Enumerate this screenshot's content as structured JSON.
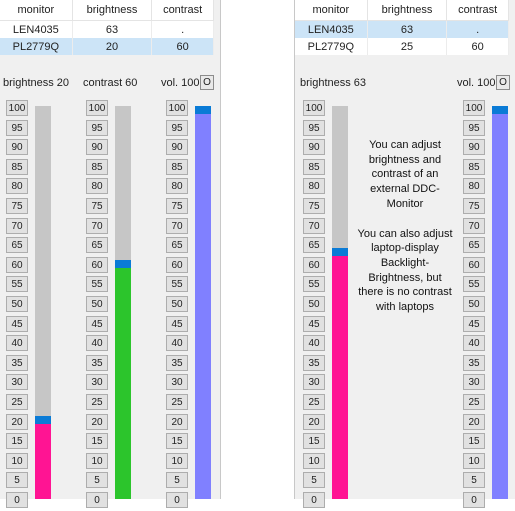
{
  "left": {
    "table": {
      "headers": [
        "monitor",
        "brightness",
        "contrast"
      ],
      "rows": [
        {
          "monitor": "LEN4035",
          "brightness": "63",
          "contrast": ".",
          "selected": false
        },
        {
          "monitor": "PL2779Q",
          "brightness": "20",
          "contrast": "60",
          "selected": true
        }
      ]
    },
    "brightness_label": "brightness 20",
    "contrast_label": "contrast 60",
    "volume_label": "vol. 100",
    "o_button": "O",
    "brightness_level": 20,
    "contrast_level": 60,
    "volume_level": 100
  },
  "right": {
    "table": {
      "headers": [
        "monitor",
        "brightness",
        "contrast"
      ],
      "rows": [
        {
          "monitor": "LEN4035",
          "brightness": "63",
          "contrast": ".",
          "selected": true
        },
        {
          "monitor": "PL2779Q",
          "brightness": "25",
          "contrast": "60",
          "selected": false
        }
      ]
    },
    "brightness_label": "brightness 63",
    "volume_label": "vol. 100",
    "o_button": "O",
    "brightness_level": 63,
    "volume_level": 100,
    "info_paragraphs": [
      "You can adjust brightness and contrast of an external DDC-Monitor",
      "You can also adjust laptop-display Backlight-Brightness, but there is no contrast with laptops"
    ]
  },
  "scale": [
    "100",
    "95",
    "90",
    "85",
    "80",
    "75",
    "70",
    "65",
    "60",
    "55",
    "50",
    "45",
    "40",
    "35",
    "30",
    "25",
    "20",
    "15",
    "10",
    "5",
    "0"
  ],
  "colors": {
    "brightness_fill": "#ff1493",
    "contrast_fill": "#2cc52c",
    "volume_fill": "#8080ff",
    "thumb": "#0a7bd6",
    "track": "#c6c6c6",
    "selected_row": "#cce4f7"
  }
}
